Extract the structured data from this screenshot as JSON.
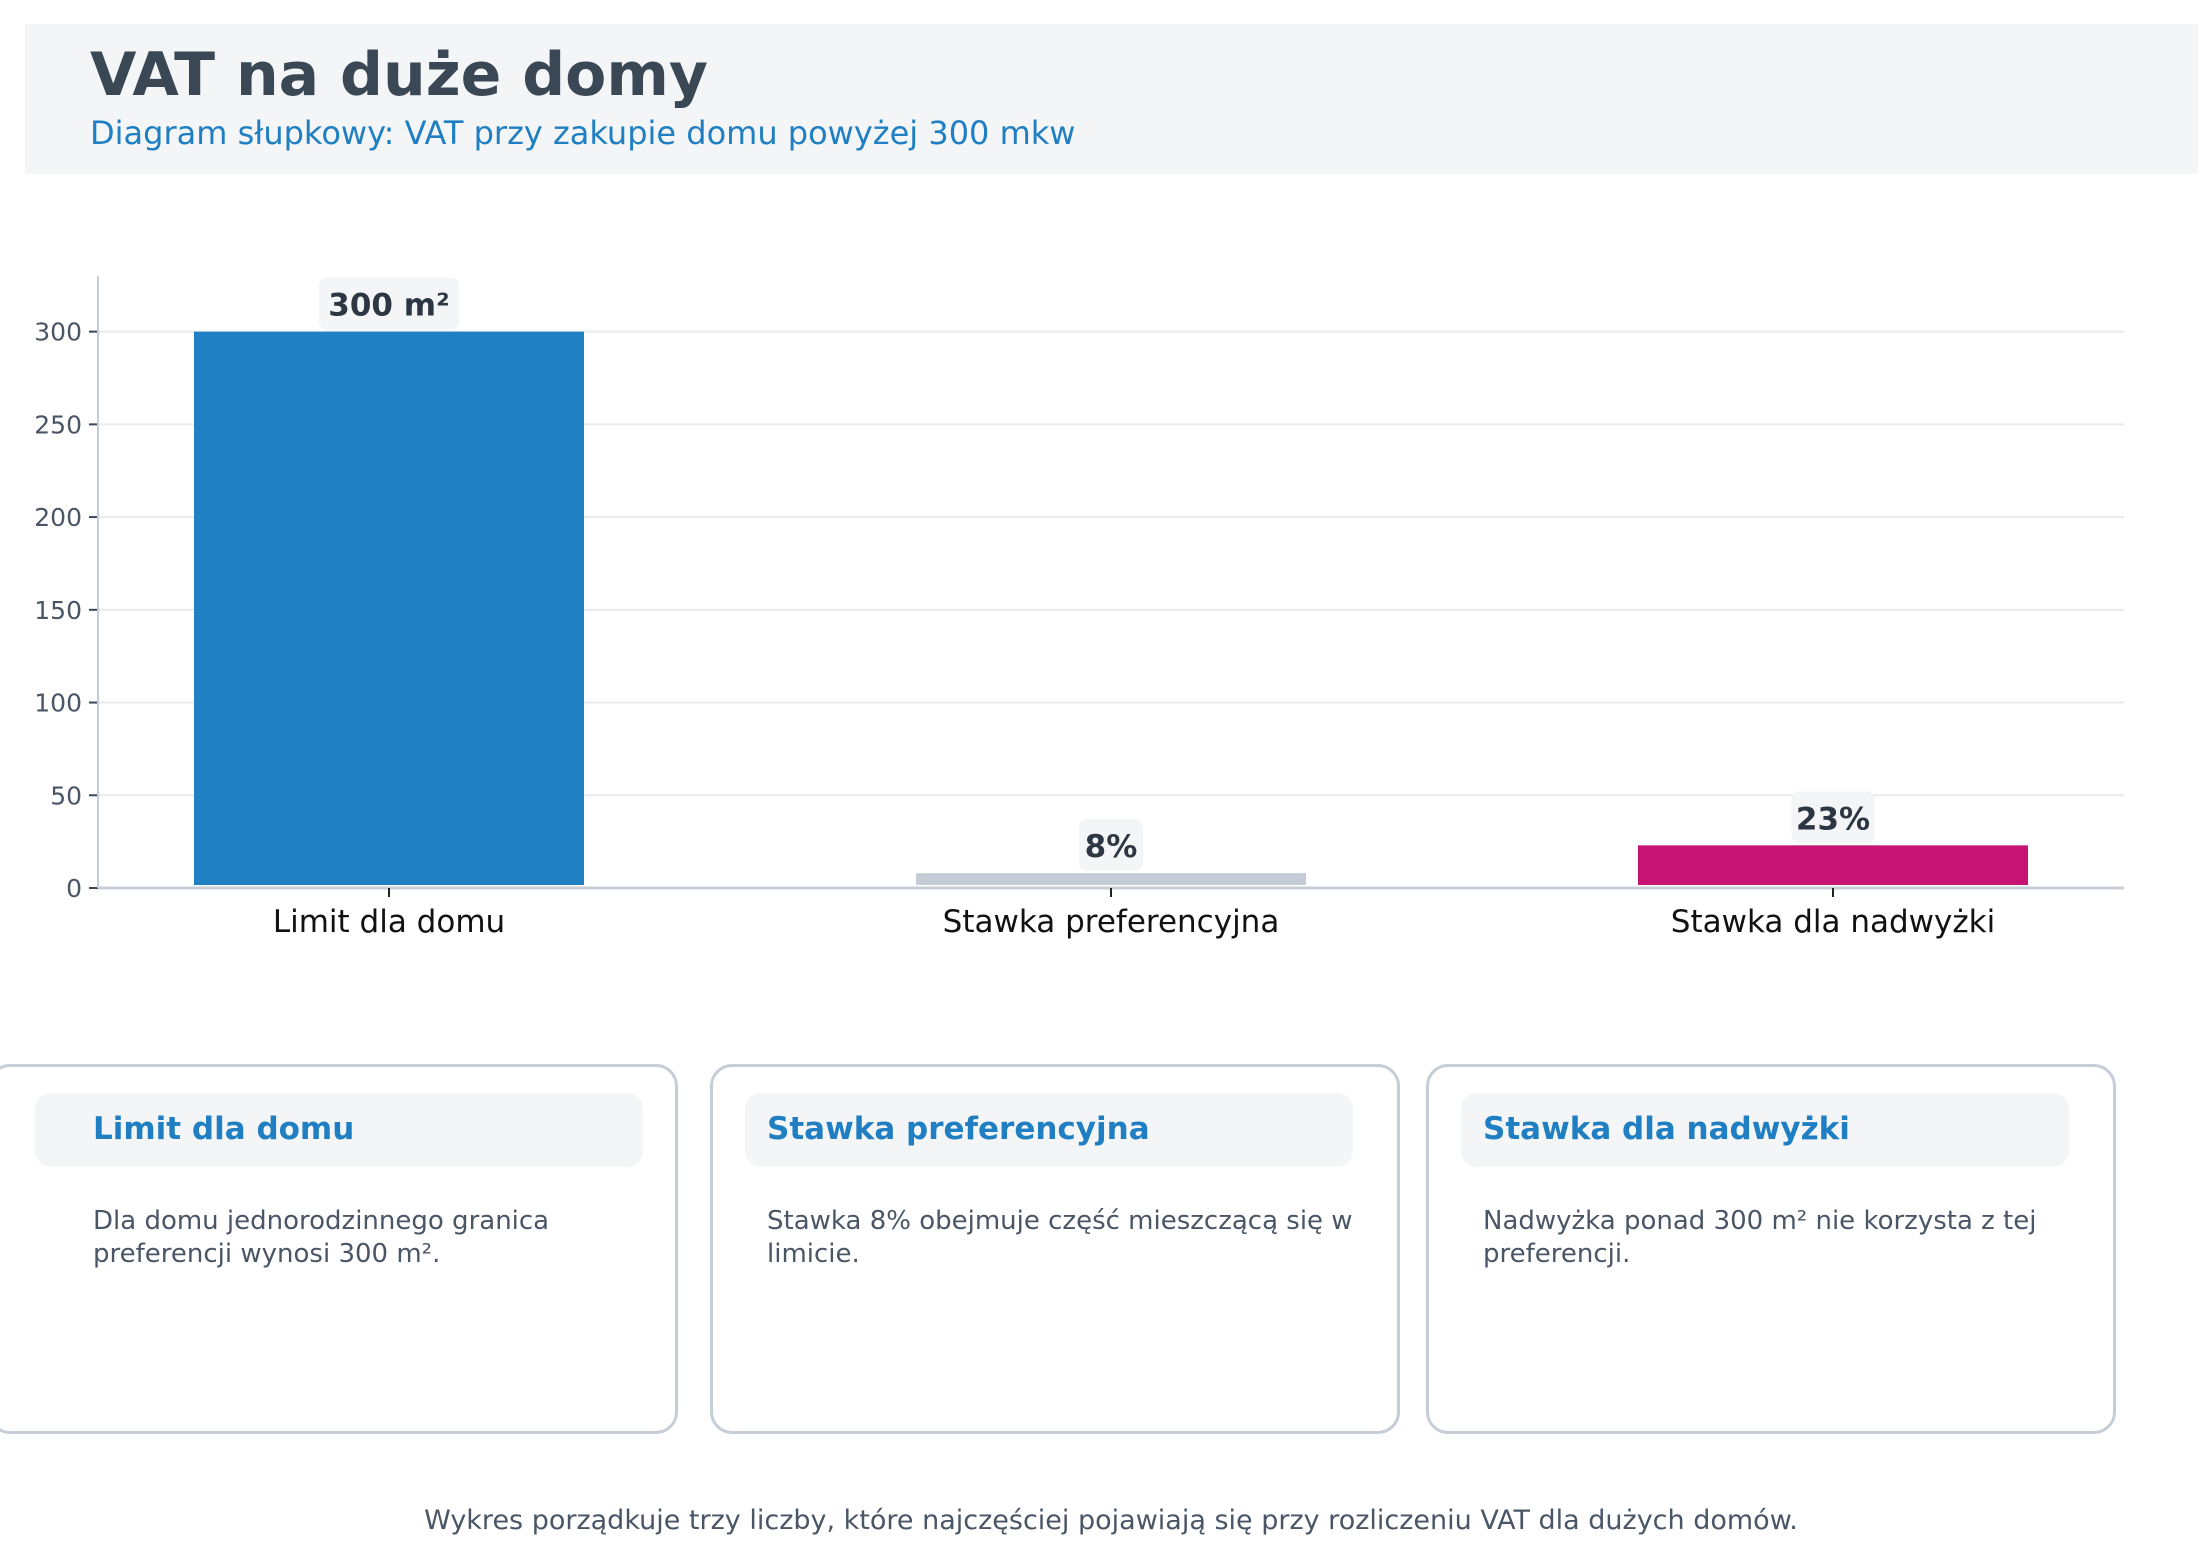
{
  "header": {
    "title": "VAT na duże domy",
    "subtitle": "Diagram słupkowy: VAT przy zakupie domu powyżej 300 mkw"
  },
  "chart_data": {
    "type": "bar",
    "categories": [
      "Limit dla domu",
      "Stawka preferencyjna",
      "Stawka dla nadwyżki"
    ],
    "values": [
      300,
      8,
      23
    ],
    "data_labels": [
      "300 m²",
      "8%",
      "23%"
    ],
    "colors": [
      "#1f80c3",
      "#c5ccd5",
      "#c71373"
    ],
    "yticks": [
      0,
      50,
      100,
      150,
      200,
      250,
      300
    ],
    "ylim": [
      0,
      330
    ],
    "grid": true,
    "xlabel": "",
    "ylabel": ""
  },
  "cards": [
    {
      "title": "Limit dla domu",
      "body": "Dla domu jednorodzinnego granica preferencji wynosi 300 m²."
    },
    {
      "title": "Stawka preferencyjna",
      "body": "Stawka 8% obejmuje część mieszczącą się w limicie."
    },
    {
      "title": "Stawka dla nadwyżki",
      "body": "Nadwyżka ponad 300 m² nie korzysta z tej preferencji."
    }
  ],
  "footer": "Wykres porządkuje trzy liczby, które najczęściej pojawiają się przy rozliczeniu VAT dla dużych domów."
}
